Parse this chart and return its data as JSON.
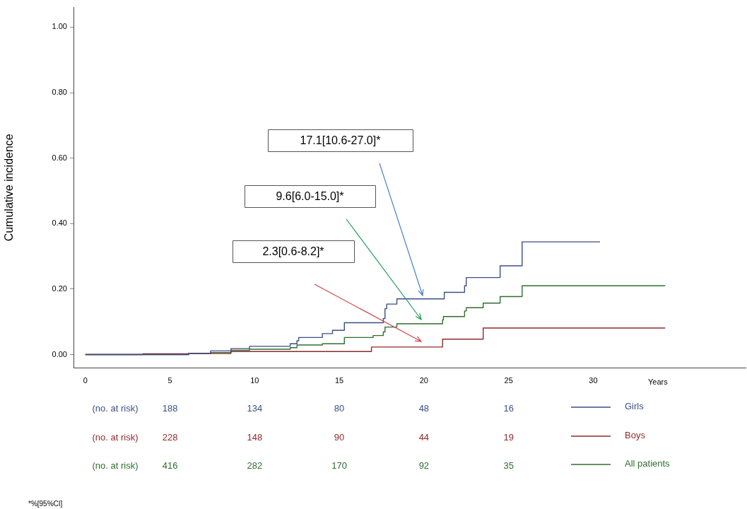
{
  "chart_data": {
    "type": "step",
    "ylabel": "Cumulative incidence",
    "xlabel": "Years",
    "xlim": [
      -0.7,
      39
    ],
    "xticks": [
      0,
      5,
      10,
      15,
      20,
      25,
      30
    ],
    "ylim": [
      -0.04,
      1.06
    ],
    "yticks": [
      {
        "value": 0,
        "label": "0.00"
      },
      {
        "value": 0.2,
        "label": "0.20"
      },
      {
        "value": 0.4,
        "label": "0.40"
      },
      {
        "value": 0.6,
        "label": "0.60"
      },
      {
        "value": 0.8,
        "label": "0.80"
      },
      {
        "value": 1,
        "label": "1.00"
      }
    ],
    "grid": false,
    "legend": "bottom right",
    "marker": "none",
    "line_style": "solid",
    "series": [
      {
        "name": "Girls",
        "color": "#3b4f86",
        "x": [
          0,
          6.1,
          7.4,
          8.6,
          9.7,
          12.1,
          12.5,
          12.6,
          14,
          14.6,
          15.3,
          17.6,
          17.7,
          17.8,
          18.4,
          21.2,
          22.4,
          22.5,
          24.5,
          25.8,
          30.4
        ],
        "values": [
          0,
          0.004,
          0.011,
          0.018,
          0.025,
          0.033,
          0.042,
          0.052,
          0.064,
          0.074,
          0.097,
          0.11,
          0.14,
          0.154,
          0.17,
          0.19,
          0.21,
          0.235,
          0.271,
          0.344,
          0.344
        ]
      },
      {
        "name": "Boys",
        "color": "#8e2b2b",
        "x": [
          0,
          3.4,
          6.1,
          8.6,
          16.9,
          21.1,
          23.5,
          34.25
        ],
        "values": [
          0,
          0.002,
          0.003,
          0.009,
          0.023,
          0.047,
          0.081,
          0.081
        ]
      },
      {
        "name": "All patients",
        "color": "#2f6e2f",
        "x": [
          0,
          6.1,
          7.4,
          8.6,
          9.7,
          12.1,
          12.5,
          14,
          15.3,
          17,
          17.6,
          17.7,
          18.4,
          21.1,
          21.15,
          22.4,
          22.5,
          23.5,
          24.5,
          25.8,
          34.25
        ],
        "values": [
          0,
          0.003,
          0.006,
          0.013,
          0.016,
          0.021,
          0.029,
          0.033,
          0.052,
          0.058,
          0.069,
          0.084,
          0.094,
          0.106,
          0.116,
          0.133,
          0.143,
          0.157,
          0.177,
          0.21,
          0.21
        ]
      }
    ],
    "annotations": [
      "17.1[10.6-27.0]*",
      "9.6[6.0-15.0]*",
      "2.3[0.6-8.2]*",
      "(no. at risk)",
      "188",
      "134",
      "80",
      "48",
      "16",
      "(no. at risk)",
      "228",
      "148",
      "90",
      "44",
      "19",
      "(no. at risk)",
      "416",
      "282",
      "170",
      "92",
      "35",
      "*%[95%CI]"
    ]
  }
}
